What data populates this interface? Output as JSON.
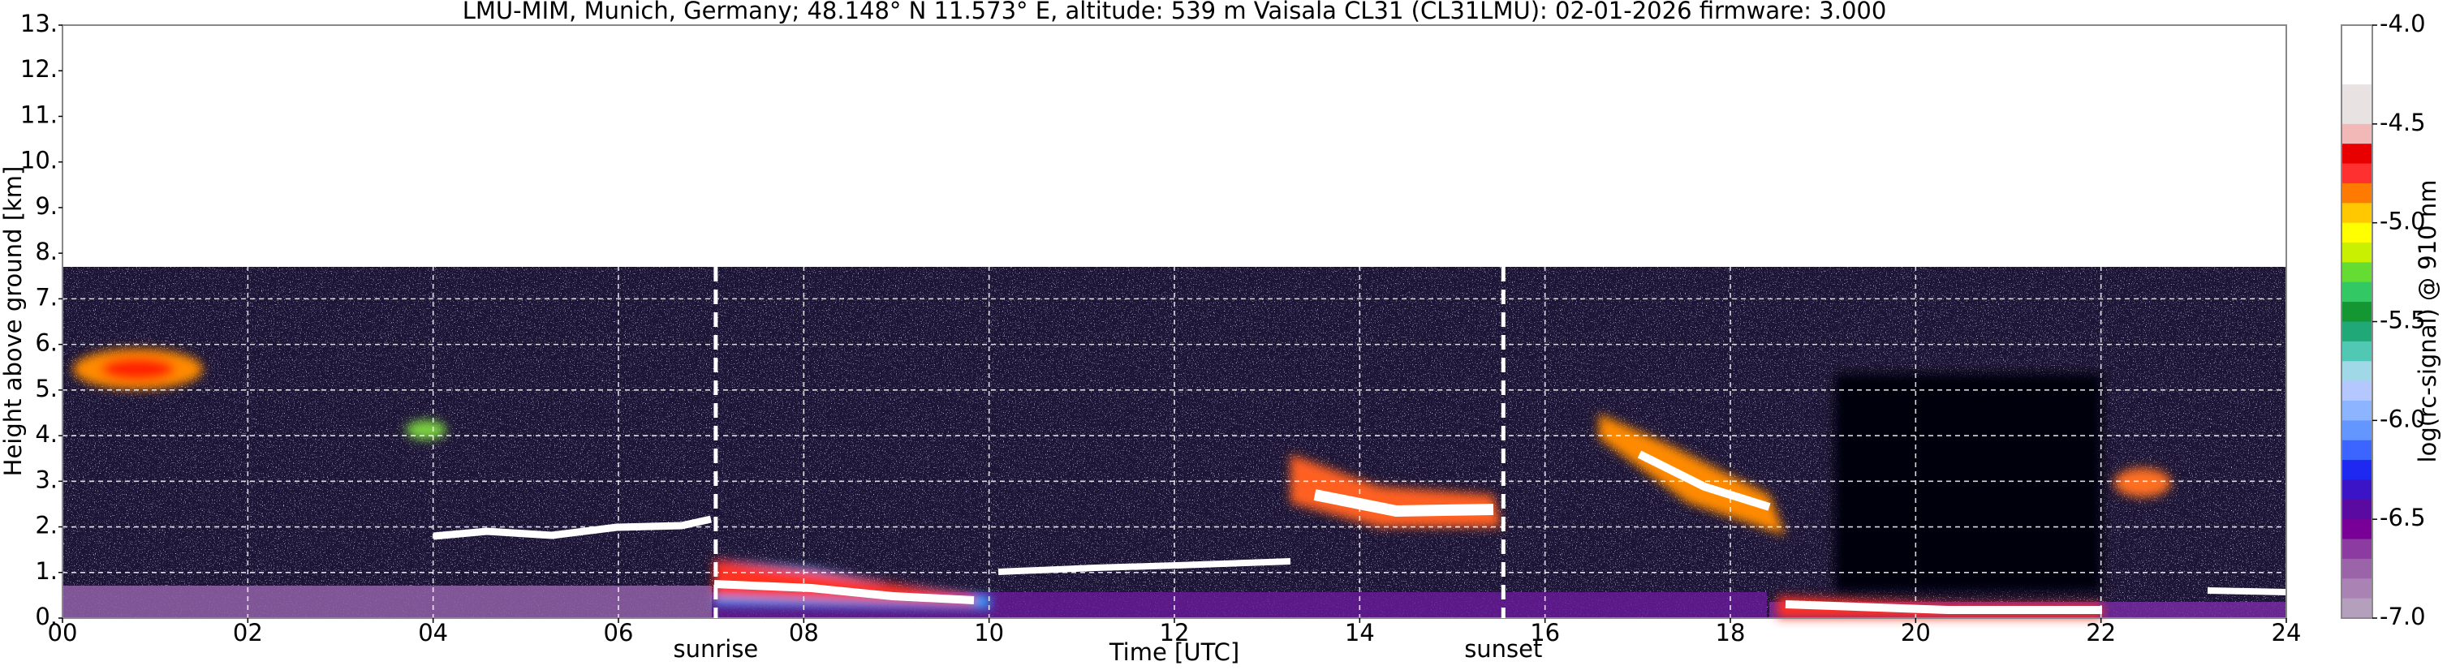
{
  "chart_data": {
    "type": "heatmap",
    "title": "LMU-MIM, Munich, Germany; 48.148° N 11.573° E, altitude: 539 m    Vaisala CL31 (CL31LMU): 02-01-2026    firmware: 3.000",
    "x_label": "Time [UTC]",
    "y_label": "Height above ground [km]",
    "xlim": [
      0,
      24
    ],
    "xticks": [
      {
        "value": 0,
        "label": "00"
      },
      {
        "value": 2,
        "label": "02"
      },
      {
        "value": 4,
        "label": "04"
      },
      {
        "value": 6,
        "label": "06"
      },
      {
        "value": 8,
        "label": "08"
      },
      10,
      12,
      14,
      16,
      18,
      20,
      22,
      24
    ],
    "ylim": [
      0,
      13
    ],
    "yticks": [
      {
        "value": 0,
        "label": "0."
      },
      {
        "value": 1,
        "label": "1."
      },
      {
        "value": 2,
        "label": "2."
      },
      {
        "value": 3,
        "label": "3."
      },
      {
        "value": 4,
        "label": "4."
      },
      {
        "value": 5,
        "label": "5."
      },
      {
        "value": 6,
        "label": "6."
      },
      {
        "value": 7,
        "label": "7."
      },
      {
        "value": 8,
        "label": "8."
      },
      {
        "value": 9,
        "label": "9."
      },
      {
        "value": 10,
        "label": "10."
      },
      {
        "value": 11,
        "label": "11."
      },
      {
        "value": 12,
        "label": "12."
      },
      {
        "value": 13,
        "label": "13."
      }
    ],
    "grid": true,
    "annotations": [
      {
        "text": "sunrise",
        "x": 7.05
      },
      {
        "text": "sunset",
        "x": 15.55
      }
    ],
    "colorbar": {
      "label": "log(rc-signal) @ 910 nm",
      "lim": [
        -7.0,
        -4.0
      ],
      "ticks": [
        {
          "value": -4.0,
          "label": "-4.0"
        },
        -4.5,
        {
          "value": -5.0,
          "label": "-5.0"
        },
        -5.5,
        {
          "value": -6.0,
          "label": "-6.0"
        },
        -6.5,
        {
          "value": -7.0,
          "label": "-7.0"
        }
      ],
      "colors": [
        "#ffffff",
        "#ffffff",
        "#ffffff",
        "#e8e2e2",
        "#e8e2e2",
        "#f2b8b8",
        "#e80000",
        "#ff3030",
        "#ff7a00",
        "#ffc800",
        "#ffff00",
        "#c8f000",
        "#64dc32",
        "#32c864",
        "#149632",
        "#20a878",
        "#50c8b4",
        "#a0d8e8",
        "#b4c8ff",
        "#8cb4ff",
        "#6496ff",
        "#3c64ff",
        "#1e28f0",
        "#3c14c8",
        "#5a0aa0",
        "#780096",
        "#8c3ca0",
        "#9c64a8",
        "#aa82b4",
        "#b4a0bc"
      ]
    }
  }
}
